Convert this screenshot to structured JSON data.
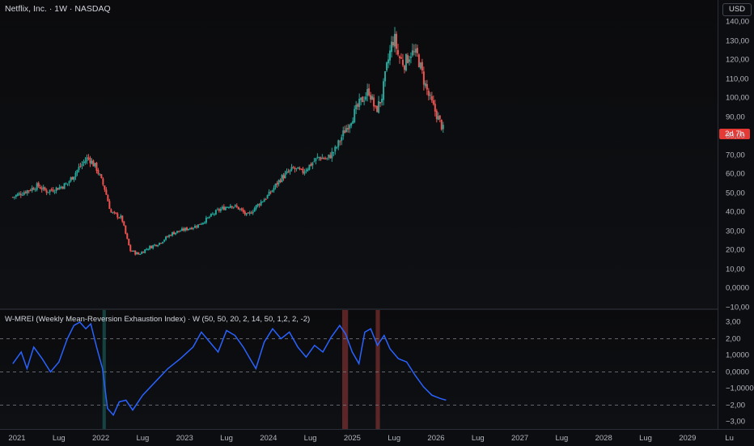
{
  "header": {
    "symbol_title": "Netflix, Inc. · 1W · NASDAQ",
    "indicator_title": "W-MREI (Weekly Mean-Reversion Exhaustion Index) · W (50, 50, 20, 2, 14, 50, 1,2, 2, -2)"
  },
  "currency_button": "USD",
  "countdown_label": "2d 7h",
  "colors": {
    "up": "#26a69a",
    "down": "#ef5350",
    "indicator_line": "#2962ff",
    "countdown_bg": "#e53935"
  },
  "chart_data": [
    {
      "type": "candlestick",
      "title": "Netflix, Inc. · 1W · NASDAQ",
      "ylim": [
        -10,
        140
      ],
      "y_ticks": [
        "140,00",
        "130,00",
        "120,00",
        "110,00",
        "100,00",
        "90,00",
        "80,00",
        "70,00",
        "60,00",
        "50,00",
        "40,00",
        "30,00",
        "20,00",
        "10,00",
        "0,0000",
        "−10,00"
      ],
      "x_ticks": [
        "2021",
        "Lug",
        "2022",
        "Lug",
        "2023",
        "Lug",
        "2024",
        "Lug",
        "2025",
        "Lug",
        "2026",
        "Lug",
        "2027",
        "Lug",
        "2028",
        "Lug",
        "2029",
        "Lu"
      ],
      "x_tick_dates": [
        2021.0,
        2021.5,
        2022.0,
        2022.5,
        2023.0,
        2023.5,
        2024.0,
        2024.5,
        2025.0,
        2025.5,
        2026.0,
        2026.5,
        2027.0,
        2027.5,
        2028.0,
        2028.5,
        2029.0,
        2029.5
      ],
      "xlim": [
        2020.9,
        2029.55
      ],
      "close_path": [
        [
          2020.95,
          48
        ],
        [
          2021.1,
          51
        ],
        [
          2021.25,
          54
        ],
        [
          2021.35,
          51
        ],
        [
          2021.5,
          53
        ],
        [
          2021.6,
          55
        ],
        [
          2021.75,
          64
        ],
        [
          2021.85,
          69
        ],
        [
          2021.95,
          63
        ],
        [
          2022.05,
          52
        ],
        [
          2022.12,
          40
        ],
        [
          2022.25,
          37
        ],
        [
          2022.3,
          28
        ],
        [
          2022.35,
          20
        ],
        [
          2022.45,
          18
        ],
        [
          2022.55,
          21
        ],
        [
          2022.7,
          24
        ],
        [
          2022.85,
          29
        ],
        [
          2023.0,
          31
        ],
        [
          2023.15,
          33
        ],
        [
          2023.25,
          36
        ],
        [
          2023.4,
          41
        ],
        [
          2023.55,
          44
        ],
        [
          2023.65,
          42
        ],
        [
          2023.75,
          38
        ],
        [
          2023.85,
          43
        ],
        [
          2024.0,
          49
        ],
        [
          2024.15,
          58
        ],
        [
          2024.3,
          63
        ],
        [
          2024.4,
          61
        ],
        [
          2024.5,
          65
        ],
        [
          2024.6,
          69
        ],
        [
          2024.7,
          68
        ],
        [
          2024.8,
          73
        ],
        [
          2024.9,
          82
        ],
        [
          2025.0,
          90
        ],
        [
          2025.1,
          98
        ],
        [
          2025.2,
          104
        ],
        [
          2025.28,
          93
        ],
        [
          2025.35,
          100
        ],
        [
          2025.42,
          118
        ],
        [
          2025.47,
          128
        ],
        [
          2025.5,
          132
        ],
        [
          2025.55,
          122
        ],
        [
          2025.62,
          118
        ],
        [
          2025.7,
          124
        ],
        [
          2025.78,
          122
        ],
        [
          2025.85,
          110
        ],
        [
          2025.92,
          100
        ],
        [
          2026.0,
          92
        ],
        [
          2026.06,
          86
        ],
        [
          2026.1,
          82
        ]
      ],
      "countdown": "2d 7h"
    },
    {
      "type": "line",
      "title": "W-MREI (Weekly Mean-Reversion Exhaustion Index) · W (50, 50, 20, 2, 14, 50, 1,2, 2, -2)",
      "ylim": [
        -3.0,
        3.2
      ],
      "y_ticks": [
        "3,00",
        "2,00",
        "1,0000",
        "0,0000",
        "−1,0000",
        "−2,00",
        "−3,00"
      ],
      "reference_lines": [
        2,
        0,
        -2
      ],
      "shaded_regions": [
        {
          "x_start": 2022.02,
          "x_end": 2022.06,
          "color": "green"
        },
        {
          "x_start": 2024.88,
          "x_end": 2024.95,
          "color": "red"
        },
        {
          "x_start": 2025.28,
          "x_end": 2025.33,
          "color": "red"
        }
      ],
      "x": [
        2020.95,
        2021.05,
        2021.12,
        2021.2,
        2021.3,
        2021.4,
        2021.5,
        2021.6,
        2021.68,
        2021.75,
        2021.82,
        2021.88,
        2021.95,
        2022.02,
        2022.08,
        2022.15,
        2022.22,
        2022.3,
        2022.38,
        2022.5,
        2022.65,
        2022.8,
        2022.95,
        2023.1,
        2023.2,
        2023.3,
        2023.4,
        2023.5,
        2023.6,
        2023.7,
        2023.78,
        2023.85,
        2023.95,
        2024.05,
        2024.15,
        2024.25,
        2024.35,
        2024.45,
        2024.55,
        2024.65,
        2024.75,
        2024.85,
        2024.92,
        2025.0,
        2025.08,
        2025.15,
        2025.22,
        2025.3,
        2025.38,
        2025.45,
        2025.55,
        2025.65,
        2025.75,
        2025.85,
        2025.95,
        2026.05,
        2026.12
      ],
      "values": [
        0.5,
        1.2,
        0.2,
        1.5,
        0.8,
        0.0,
        0.6,
        2.0,
        2.8,
        3.0,
        2.6,
        2.9,
        1.5,
        0.2,
        -2.2,
        -2.6,
        -1.8,
        -1.7,
        -2.3,
        -1.4,
        -0.6,
        0.2,
        0.8,
        1.5,
        2.4,
        1.8,
        1.2,
        2.5,
        2.2,
        1.5,
        0.8,
        0.2,
        1.8,
        2.6,
        2.0,
        2.4,
        1.5,
        0.9,
        1.6,
        1.2,
        2.1,
        2.8,
        2.3,
        1.2,
        0.5,
        2.4,
        2.6,
        1.6,
        2.2,
        1.4,
        0.8,
        0.6,
        -0.2,
        -0.9,
        -1.4,
        -1.6,
        -1.7
      ]
    }
  ]
}
